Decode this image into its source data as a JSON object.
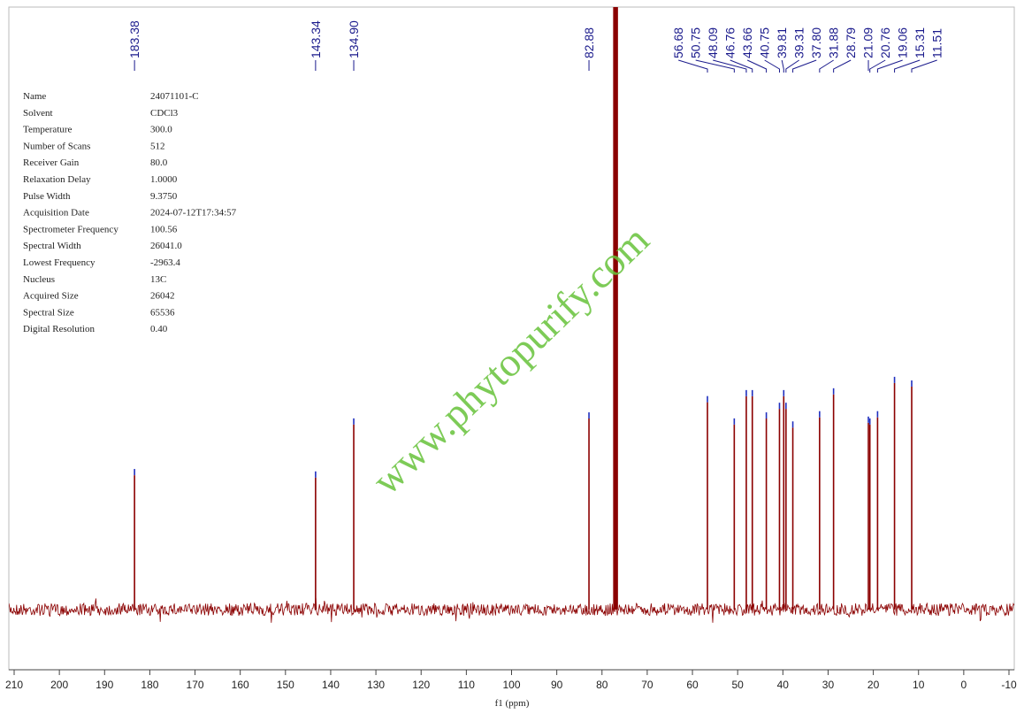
{
  "chart_data": {
    "type": "nmr",
    "xlabel": "f1 (ppm)",
    "xlim": [
      210,
      -10
    ],
    "xticks": [
      210,
      200,
      190,
      180,
      170,
      160,
      150,
      140,
      130,
      120,
      110,
      100,
      90,
      80,
      70,
      60,
      50,
      40,
      30,
      20,
      10,
      0,
      -10
    ],
    "ylim": [
      -10,
      100
    ],
    "color": "#8b0000",
    "marker_color": "#1f2fbf",
    "label_color": "#1a1a8c",
    "peaks": {
      "x": [
        183.38,
        143.34,
        134.9,
        82.88,
        56.68,
        50.75,
        48.09,
        46.76,
        43.66,
        40.75,
        39.81,
        39.31,
        37.8,
        31.88,
        28.79,
        21.09,
        20.76,
        19.06,
        15.31,
        11.51
      ],
      "x_labels": [
        "183.38",
        "143.34",
        "134.90",
        "82.88",
        "56.68",
        "50.75",
        "48.09",
        "46.76",
        "43.66",
        "40.75",
        "39.81",
        "39.31",
        "37.80",
        "31.88",
        "28.79",
        "21.09",
        "20.76",
        "19.06",
        "15.31",
        "11.51"
      ],
      "values": [
        22.3,
        21.9,
        30.7,
        31.7,
        34.4,
        30.7,
        35.4,
        35.4,
        31.7,
        33.3,
        35.4,
        33.3,
        30.2,
        31.9,
        35.7,
        31.0,
        30.7,
        31.9,
        37.6,
        37.0
      ]
    },
    "solvent": {
      "x": [
        77.32,
        77.0,
        76.68
      ],
      "values": [
        120,
        120,
        120
      ]
    },
    "parameters": [
      {
        "label": "Name",
        "value": "24071101-C"
      },
      {
        "label": "Solvent",
        "value": "CDCl3"
      },
      {
        "label": "Temperature",
        "value": "300.0"
      },
      {
        "label": "Number of Scans",
        "value": "512"
      },
      {
        "label": "Receiver Gain",
        "value": "80.0"
      },
      {
        "label": "Relaxation Delay",
        "value": "1.0000"
      },
      {
        "label": "Pulse Width",
        "value": "9.3750"
      },
      {
        "label": "Acquisition Date",
        "value": "2024-07-12T17:34:57"
      },
      {
        "label": "Spectrometer Frequency",
        "value": "100.56"
      },
      {
        "label": "Spectral Width",
        "value": "26041.0"
      },
      {
        "label": "Lowest Frequency",
        "value": "-2963.4"
      },
      {
        "label": "Nucleus",
        "value": "13C"
      },
      {
        "label": "Acquired Size",
        "value": "26042"
      },
      {
        "label": "Spectral Size",
        "value": "65536"
      },
      {
        "label": "Digital Resolution",
        "value": "0.40"
      }
    ],
    "watermark": "www.phytopurify.com"
  }
}
